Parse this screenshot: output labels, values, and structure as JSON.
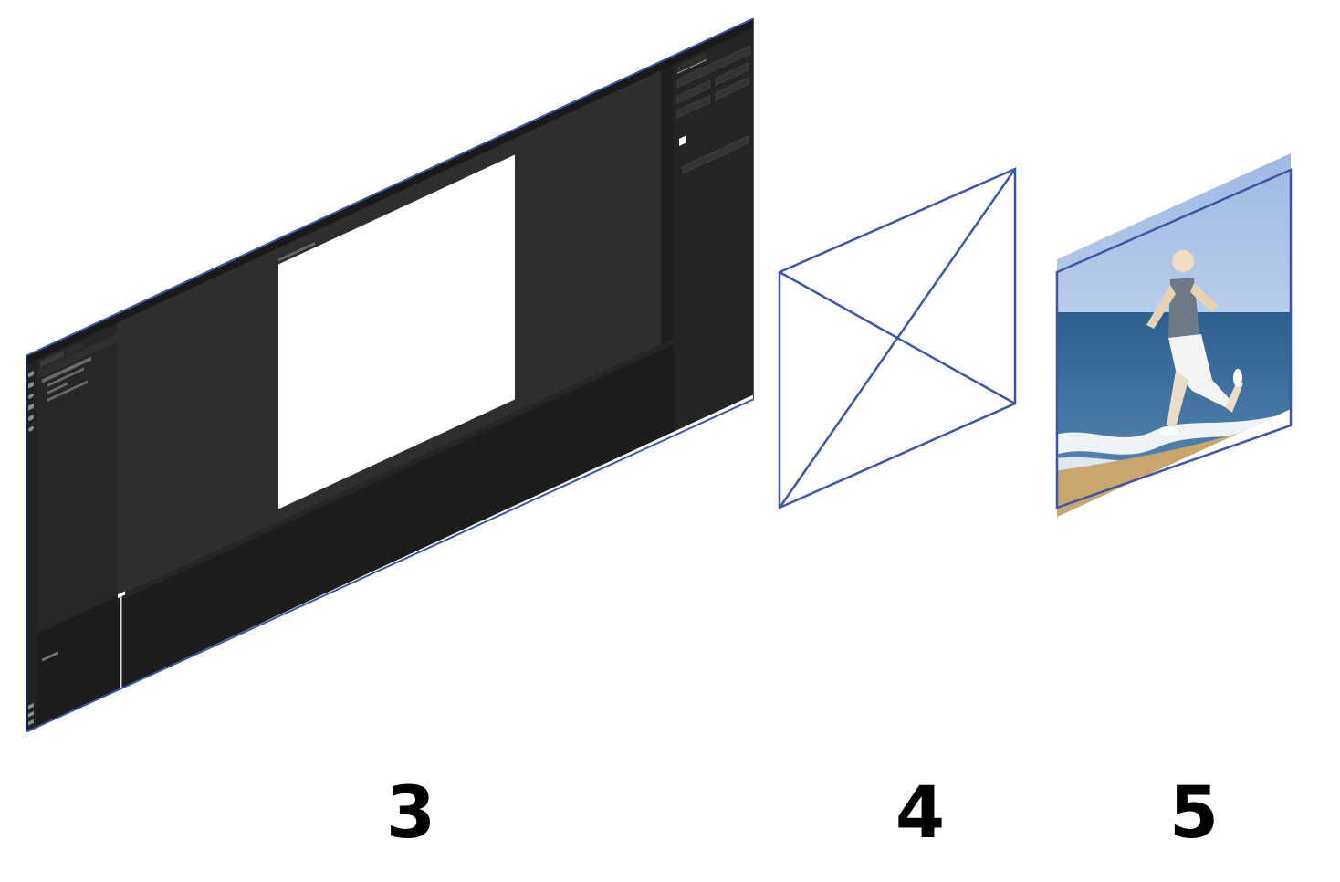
{
  "labels": {
    "panel3": "3",
    "panel4": "4",
    "panel5": "5"
  },
  "colors": {
    "outline": "#3d56a6",
    "app_dark": "#1f1f1f",
    "app_panel": "#262626",
    "canvas_bg": "#2e2e2e",
    "artboard": "#ffffff"
  },
  "panel3": {
    "icons": [
      "select-icon",
      "frame-icon",
      "shape-icon",
      "text-icon",
      "hand-icon",
      "zoom-icon"
    ]
  },
  "panel4": {
    "icon": "image-placeholder-icon"
  },
  "panel5": {
    "content": "photo"
  }
}
